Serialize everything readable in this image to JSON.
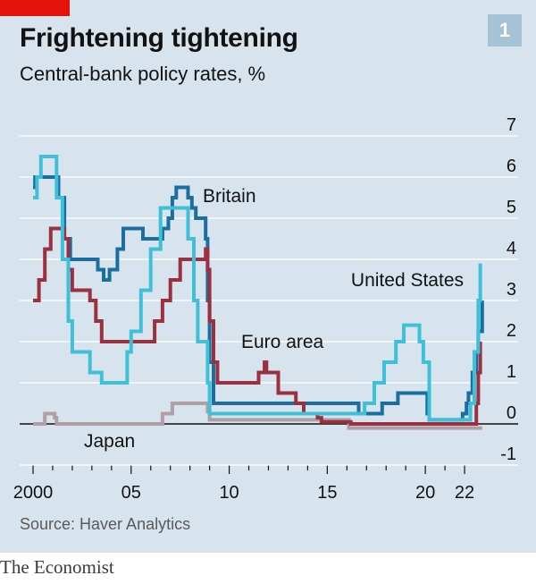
{
  "header": {
    "title": "Frightening tightening",
    "subtitle": "Central-bank policy rates, %",
    "badge": "1"
  },
  "footer": {
    "source": "Source: Haver Analytics",
    "brand": "The Economist"
  },
  "colors": {
    "background": "#d7e4ed",
    "accent_red": "#e3120b",
    "britain": "#1a6fa0",
    "united_states": "#3ec1d8",
    "euro_area": "#9b3041",
    "japan": "#b19ea6"
  },
  "chart_data": {
    "type": "line",
    "title": "Frightening tightening",
    "subtitle": "Central-bank policy rates, %",
    "xlim": [
      2000,
      2023
    ],
    "ylim": [
      -1,
      7
    ],
    "x_ticks": [
      2000,
      2005,
      2010,
      2015,
      2020,
      2022
    ],
    "x_tick_labels": [
      "2000",
      "05",
      "10",
      "15",
      "20",
      "22"
    ],
    "y_ticks": [
      -1,
      0,
      1,
      2,
      3,
      4,
      5,
      6,
      7
    ],
    "y_tick_labels": [
      "-1",
      "0",
      "1",
      "2",
      "3",
      "4",
      "5",
      "6",
      "7"
    ],
    "grid": true,
    "y_axis_side": "right",
    "series": [
      {
        "name": "Britain",
        "label_position": "upper-middle",
        "points": [
          [
            2000.0,
            5.75
          ],
          [
            2000.1,
            6.0
          ],
          [
            2001.0,
            6.0
          ],
          [
            2001.3,
            5.5
          ],
          [
            2001.6,
            4.5
          ],
          [
            2001.9,
            4.0
          ],
          [
            2003.1,
            4.0
          ],
          [
            2003.3,
            3.75
          ],
          [
            2003.6,
            3.5
          ],
          [
            2003.9,
            3.75
          ],
          [
            2004.3,
            4.25
          ],
          [
            2004.6,
            4.75
          ],
          [
            2005.6,
            4.5
          ],
          [
            2006.6,
            4.75
          ],
          [
            2006.9,
            5.0
          ],
          [
            2007.1,
            5.5
          ],
          [
            2007.3,
            5.75
          ],
          [
            2007.9,
            5.5
          ],
          [
            2008.1,
            5.25
          ],
          [
            2008.3,
            5.0
          ],
          [
            2008.8,
            4.5
          ],
          [
            2008.9,
            3.0
          ],
          [
            2009.0,
            1.5
          ],
          [
            2009.2,
            0.5
          ],
          [
            2016.6,
            0.25
          ],
          [
            2017.8,
            0.5
          ],
          [
            2018.6,
            0.75
          ],
          [
            2020.1,
            0.25
          ],
          [
            2020.2,
            0.1
          ],
          [
            2021.9,
            0.25
          ],
          [
            2022.1,
            0.5
          ],
          [
            2022.2,
            0.75
          ],
          [
            2022.4,
            1.25
          ],
          [
            2022.6,
            1.75
          ],
          [
            2022.7,
            2.25
          ],
          [
            2022.9,
            3.0
          ]
        ]
      },
      {
        "name": "United States",
        "label_position": "right",
        "points": [
          [
            2000.0,
            5.5
          ],
          [
            2000.2,
            6.0
          ],
          [
            2000.4,
            6.5
          ],
          [
            2001.0,
            6.5
          ],
          [
            2001.2,
            5.5
          ],
          [
            2001.5,
            4.0
          ],
          [
            2001.8,
            2.5
          ],
          [
            2002.0,
            1.75
          ],
          [
            2002.9,
            1.25
          ],
          [
            2003.5,
            1.0
          ],
          [
            2004.5,
            1.0
          ],
          [
            2004.8,
            1.75
          ],
          [
            2005.0,
            2.25
          ],
          [
            2005.5,
            3.25
          ],
          [
            2006.0,
            4.25
          ],
          [
            2006.5,
            5.25
          ],
          [
            2007.6,
            5.25
          ],
          [
            2007.9,
            4.5
          ],
          [
            2008.2,
            3.0
          ],
          [
            2008.4,
            2.0
          ],
          [
            2008.9,
            1.0
          ],
          [
            2009.0,
            0.25
          ],
          [
            2015.9,
            0.25
          ],
          [
            2016.9,
            0.5
          ],
          [
            2017.4,
            1.0
          ],
          [
            2017.9,
            1.5
          ],
          [
            2018.5,
            2.0
          ],
          [
            2018.9,
            2.4
          ],
          [
            2019.5,
            2.4
          ],
          [
            2019.7,
            2.0
          ],
          [
            2019.9,
            1.5
          ],
          [
            2020.2,
            0.1
          ],
          [
            2022.1,
            0.1
          ],
          [
            2022.3,
            0.5
          ],
          [
            2022.5,
            1.75
          ],
          [
            2022.7,
            3.0
          ],
          [
            2022.8,
            3.9
          ]
        ]
      },
      {
        "name": "Euro area",
        "label_position": "middle",
        "points": [
          [
            2000.0,
            3.0
          ],
          [
            2000.3,
            3.5
          ],
          [
            2000.6,
            4.25
          ],
          [
            2000.9,
            4.75
          ],
          [
            2001.4,
            4.75
          ],
          [
            2001.6,
            4.5
          ],
          [
            2001.8,
            3.75
          ],
          [
            2002.0,
            3.25
          ],
          [
            2002.9,
            3.0
          ],
          [
            2003.2,
            2.5
          ],
          [
            2003.5,
            2.0
          ],
          [
            2005.9,
            2.0
          ],
          [
            2006.2,
            2.5
          ],
          [
            2006.6,
            3.0
          ],
          [
            2007.0,
            3.5
          ],
          [
            2007.5,
            4.0
          ],
          [
            2008.6,
            4.0
          ],
          [
            2008.8,
            4.25
          ],
          [
            2008.9,
            3.75
          ],
          [
            2009.0,
            2.5
          ],
          [
            2009.2,
            1.5
          ],
          [
            2009.4,
            1.0
          ],
          [
            2011.3,
            1.0
          ],
          [
            2011.5,
            1.25
          ],
          [
            2011.8,
            1.5
          ],
          [
            2011.9,
            1.25
          ],
          [
            2012.5,
            0.75
          ],
          [
            2013.4,
            0.5
          ],
          [
            2013.8,
            0.25
          ],
          [
            2014.5,
            0.15
          ],
          [
            2014.7,
            0.05
          ],
          [
            2016.2,
            0.0
          ],
          [
            2022.5,
            0.0
          ],
          [
            2022.6,
            0.5
          ],
          [
            2022.7,
            1.25
          ],
          [
            2022.8,
            2.0
          ]
        ]
      },
      {
        "name": "Japan",
        "label_position": "lower-left",
        "points": [
          [
            2000.0,
            0.0
          ],
          [
            2000.6,
            0.25
          ],
          [
            2001.1,
            0.15
          ],
          [
            2001.2,
            0.0
          ],
          [
            2006.5,
            0.0
          ],
          [
            2006.6,
            0.25
          ],
          [
            2007.1,
            0.5
          ],
          [
            2008.8,
            0.5
          ],
          [
            2008.9,
            0.3
          ],
          [
            2009.0,
            0.1
          ],
          [
            2016.0,
            0.1
          ],
          [
            2016.1,
            -0.1
          ],
          [
            2022.9,
            -0.1
          ]
        ]
      }
    ]
  }
}
